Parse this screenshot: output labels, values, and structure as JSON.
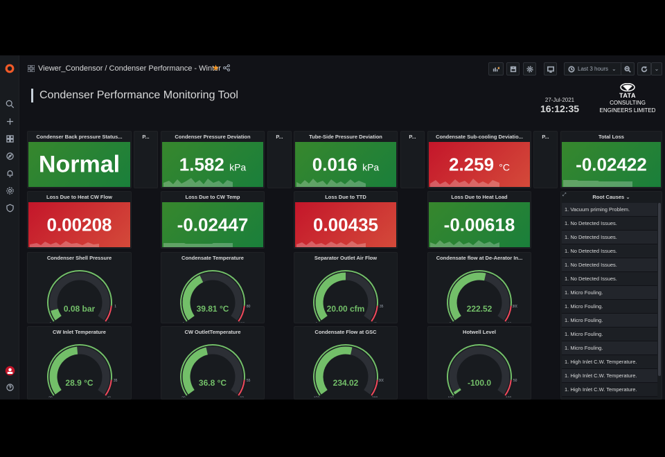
{
  "breadcrumb": "Viewer_Condensor / Condenser Performance - Winter",
  "toolbar": {
    "time_range": "Last 3 hours"
  },
  "dashboard_title": "Condenser Performance Monitoring Tool",
  "clock": {
    "date": "27-Jul-2021",
    "time": "16:12:35"
  },
  "logo": {
    "brand": "TATA",
    "line1": "CONSULTING",
    "line2": "ENGINEERS LIMITED"
  },
  "spacer_label": "P...",
  "stat_row1": [
    {
      "title": "Condenser Back pressure Status...",
      "value": "Normal",
      "unit": "",
      "color": "green"
    },
    {
      "title": "Condenser Pressure Deviation",
      "value": "1.582",
      "unit": "kPa",
      "color": "green"
    },
    {
      "title": "Tube-Side Pressure Deviation",
      "value": "0.016",
      "unit": "kPa",
      "color": "green"
    },
    {
      "title": "Condensate Sub-cooling Deviatio...",
      "value": "2.259",
      "unit": "°C",
      "color": "red"
    },
    {
      "title": "Total Loss",
      "value": "-0.02422",
      "unit": "",
      "color": "green"
    }
  ],
  "stat_row2": [
    {
      "title": "Loss Due to Heat CW Flow",
      "value": "0.00208",
      "color": "red"
    },
    {
      "title": "Loss Due to CW Temp",
      "value": "-0.02447",
      "color": "green"
    },
    {
      "title": "Loss Due to TTD",
      "value": "0.00435",
      "color": "red"
    },
    {
      "title": "Loss Due to Heat Load",
      "value": "-0.00618",
      "color": "green"
    }
  ],
  "gauges": [
    {
      "title": "Condenser Shell Pressure",
      "value": "0.08 bar",
      "fraction": 0.08,
      "min_label": "0",
      "max_label": "1",
      "red_label": "1"
    },
    {
      "title": "Condensate Temperature",
      "value": "39.81 °C",
      "fraction": 0.4,
      "min_label": "0",
      "max_label": "100",
      "red_label": "80"
    },
    {
      "title": "Separator Outlet Air Flow",
      "value": "20.00 cfm",
      "fraction": 0.5,
      "min_label": "0",
      "max_label": "40",
      "red_label": "35"
    },
    {
      "title": "Condensate flow at De-Aerator In...",
      "value": "222.52",
      "fraction": 0.55,
      "min_label": "0",
      "max_label": "400",
      "red_label": "300"
    },
    {
      "title": "CW Inlet Temperature",
      "value": "28.9 °C",
      "fraction": 0.48,
      "min_label": "20",
      "max_label": "40",
      "red_label": "35"
    },
    {
      "title": "CW OutletTemperature",
      "value": "36.8 °C",
      "fraction": 0.45,
      "min_label": "20",
      "max_label": "60",
      "red_label": "55"
    },
    {
      "title": "Condensate Flow at GSC",
      "value": "234.02",
      "fraction": 0.55,
      "min_label": "150",
      "max_label": "300",
      "red_label": "300"
    },
    {
      "title": "Hotwell Level",
      "value": "-100.0",
      "fraction": 0.0,
      "min_label": "-100",
      "max_label": "100",
      "red_label": "50"
    }
  ],
  "root_causes": {
    "title": "Root Causes",
    "items": [
      "1. Vacuum priming Problem.",
      "1. No Detected Issues.",
      "1. No Detected Issues.",
      "1. No Detected Issues.",
      "1. No Detected Issues.",
      "1. No Detected Issues.",
      "1. Micro Fouling.",
      "1. Micro Fouling.",
      "1. Micro Fouling.",
      "1. Micro Fouling.",
      "1. Micro Fouling.",
      "1. High Inlet C.W. Temperature.",
      "1. High Inlet C.W. Temperature.",
      "1. High Inlet C.W. Temperature."
    ]
  },
  "colors": {
    "green": "#1f8a3a",
    "red": "#c8282e",
    "gauge_green": "#73bf69",
    "gauge_red": "#f2495c",
    "gauge_track": "#2c2f35"
  }
}
